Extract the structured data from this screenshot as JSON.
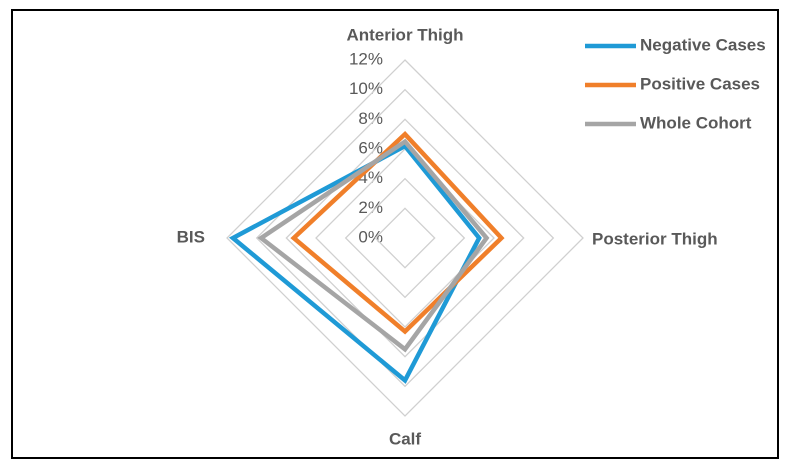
{
  "chart_data": {
    "type": "radar",
    "categories": [
      "Anterior Thigh",
      "Posterior Thigh",
      "Calf",
      "BIS"
    ],
    "series": [
      {
        "name": "Negative Cases",
        "color": "#1f9ad6",
        "values": [
          6.2,
          5.0,
          9.6,
          11.6
        ]
      },
      {
        "name": "Positive Cases",
        "color": "#f07f2a",
        "values": [
          7.0,
          6.5,
          6.3,
          7.5
        ]
      },
      {
        "name": "Whole Cohort",
        "color": "#a5a5a5",
        "values": [
          6.5,
          5.5,
          7.5,
          9.7
        ]
      }
    ],
    "ylim": [
      0,
      12
    ],
    "yticks": [
      {
        "value": 0,
        "label": "0%"
      },
      {
        "value": 2,
        "label": "2%"
      },
      {
        "value": 4,
        "label": "4%"
      },
      {
        "value": 6,
        "label": "6%"
      },
      {
        "value": 8,
        "label": "8%"
      },
      {
        "value": 10,
        "label": "10%"
      },
      {
        "value": 12,
        "label": "12%"
      }
    ],
    "grid": true,
    "legend": "top-right"
  }
}
